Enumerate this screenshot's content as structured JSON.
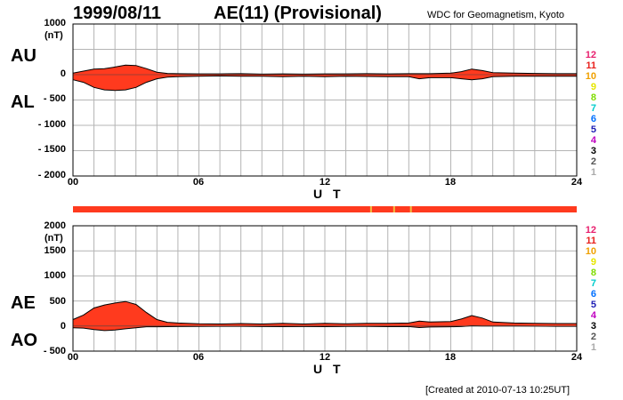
{
  "header": {
    "date": "1999/08/11",
    "title": "AE(11) (Provisional)",
    "source": "WDC for Geomagnetism, Kyoto"
  },
  "footer": {
    "created": "[Created at 2010-07-13 10:25UT]"
  },
  "colors": {
    "fill": "#ff3a1e",
    "outline": "#000000",
    "grid": "#b4b4b4",
    "bar_highlight": "#f2c040"
  },
  "legend": {
    "labels": [
      "12",
      "11",
      "10",
      "9",
      "8",
      "7",
      "6",
      "5",
      "4",
      "3",
      "2",
      "1"
    ],
    "colors": [
      "#e8206e",
      "#e8201c",
      "#f0a000",
      "#e6e600",
      "#7fdc00",
      "#00cccc",
      "#0070ff",
      "#1e1eb4",
      "#c000c0",
      "#000000",
      "#555555",
      "#aaaaaa"
    ]
  },
  "chart_data": [
    {
      "type": "area",
      "panel": "AU/AL",
      "upper_label": "AU",
      "lower_label": "AL",
      "unit_label": "(nT)",
      "xlabel": "U T",
      "xlim": [
        0,
        24
      ],
      "ylim": [
        -2000,
        1000
      ],
      "x_ticks": [
        "00",
        "06",
        "12",
        "18",
        "24"
      ],
      "y_ticks": [
        "1000",
        "500",
        "0",
        "- 500",
        "- 1000",
        "- 1500",
        "- 2000"
      ],
      "grid": true,
      "series": [
        {
          "name": "AU",
          "x": [
            0,
            0.5,
            1,
            1.5,
            2,
            2.5,
            3,
            3.5,
            4,
            4.5,
            5,
            6,
            7,
            8,
            9,
            10,
            11,
            12,
            13,
            14,
            15,
            16,
            16.5,
            17,
            18,
            18.5,
            19,
            19.5,
            20,
            21,
            22,
            23,
            24
          ],
          "values": [
            30,
            70,
            110,
            120,
            150,
            190,
            180,
            120,
            50,
            25,
            20,
            15,
            15,
            20,
            10,
            15,
            10,
            15,
            15,
            20,
            15,
            20,
            20,
            20,
            30,
            60,
            110,
            80,
            40,
            30,
            25,
            20,
            20
          ]
        },
        {
          "name": "AL",
          "x": [
            0,
            0.5,
            1,
            1.5,
            2,
            2.5,
            3,
            3.5,
            4,
            4.5,
            5,
            6,
            7,
            8,
            9,
            10,
            11,
            12,
            13,
            14,
            15,
            16,
            16.5,
            17,
            18,
            18.5,
            19,
            19.5,
            20,
            21,
            22,
            23,
            24
          ],
          "values": [
            -100,
            -150,
            -250,
            -300,
            -310,
            -300,
            -250,
            -150,
            -80,
            -50,
            -40,
            -30,
            -25,
            -30,
            -30,
            -40,
            -30,
            -40,
            -30,
            -35,
            -40,
            -40,
            -80,
            -60,
            -60,
            -80,
            -100,
            -80,
            -40,
            -30,
            -30,
            -30,
            -30
          ]
        }
      ]
    },
    {
      "type": "area",
      "panel": "AE/AO",
      "upper_label": "AE",
      "lower_label": "AO",
      "unit_label": "(nT)",
      "xlabel": "U T",
      "xlim": [
        0,
        24
      ],
      "ylim": [
        -500,
        2000
      ],
      "x_ticks": [
        "00",
        "06",
        "12",
        "18",
        "24"
      ],
      "y_ticks": [
        "2000",
        "1500",
        "1000",
        "500",
        "0",
        "- 500"
      ],
      "grid": true,
      "series": [
        {
          "name": "AE",
          "x": [
            0,
            0.5,
            1,
            1.5,
            2,
            2.5,
            3,
            3.5,
            4,
            4.5,
            5,
            6,
            7,
            8,
            9,
            10,
            11,
            12,
            13,
            14,
            15,
            16,
            16.5,
            17,
            18,
            18.5,
            19,
            19.5,
            20,
            21,
            22,
            23,
            24
          ],
          "values": [
            130,
            220,
            360,
            420,
            460,
            490,
            430,
            270,
            130,
            75,
            60,
            45,
            40,
            50,
            40,
            55,
            40,
            55,
            45,
            55,
            55,
            60,
            100,
            80,
            90,
            140,
            210,
            160,
            80,
            60,
            55,
            50,
            50
          ]
        },
        {
          "name": "AO",
          "x": [
            0,
            0.5,
            1,
            1.5,
            2,
            2.5,
            3,
            3.5,
            4,
            4.5,
            5,
            6,
            7,
            8,
            9,
            10,
            11,
            12,
            13,
            14,
            15,
            16,
            16.5,
            17,
            18,
            18.5,
            19,
            19.5,
            20,
            21,
            22,
            23,
            24
          ],
          "values": [
            -35,
            -40,
            -70,
            -90,
            -80,
            -55,
            -35,
            -15,
            -15,
            -12,
            -10,
            -8,
            -5,
            -5,
            -10,
            -12,
            -10,
            -12,
            -8,
            -8,
            -12,
            -10,
            -30,
            -20,
            -15,
            -10,
            5,
            0,
            0,
            0,
            -2,
            -5,
            -5
          ]
        }
      ]
    }
  ]
}
